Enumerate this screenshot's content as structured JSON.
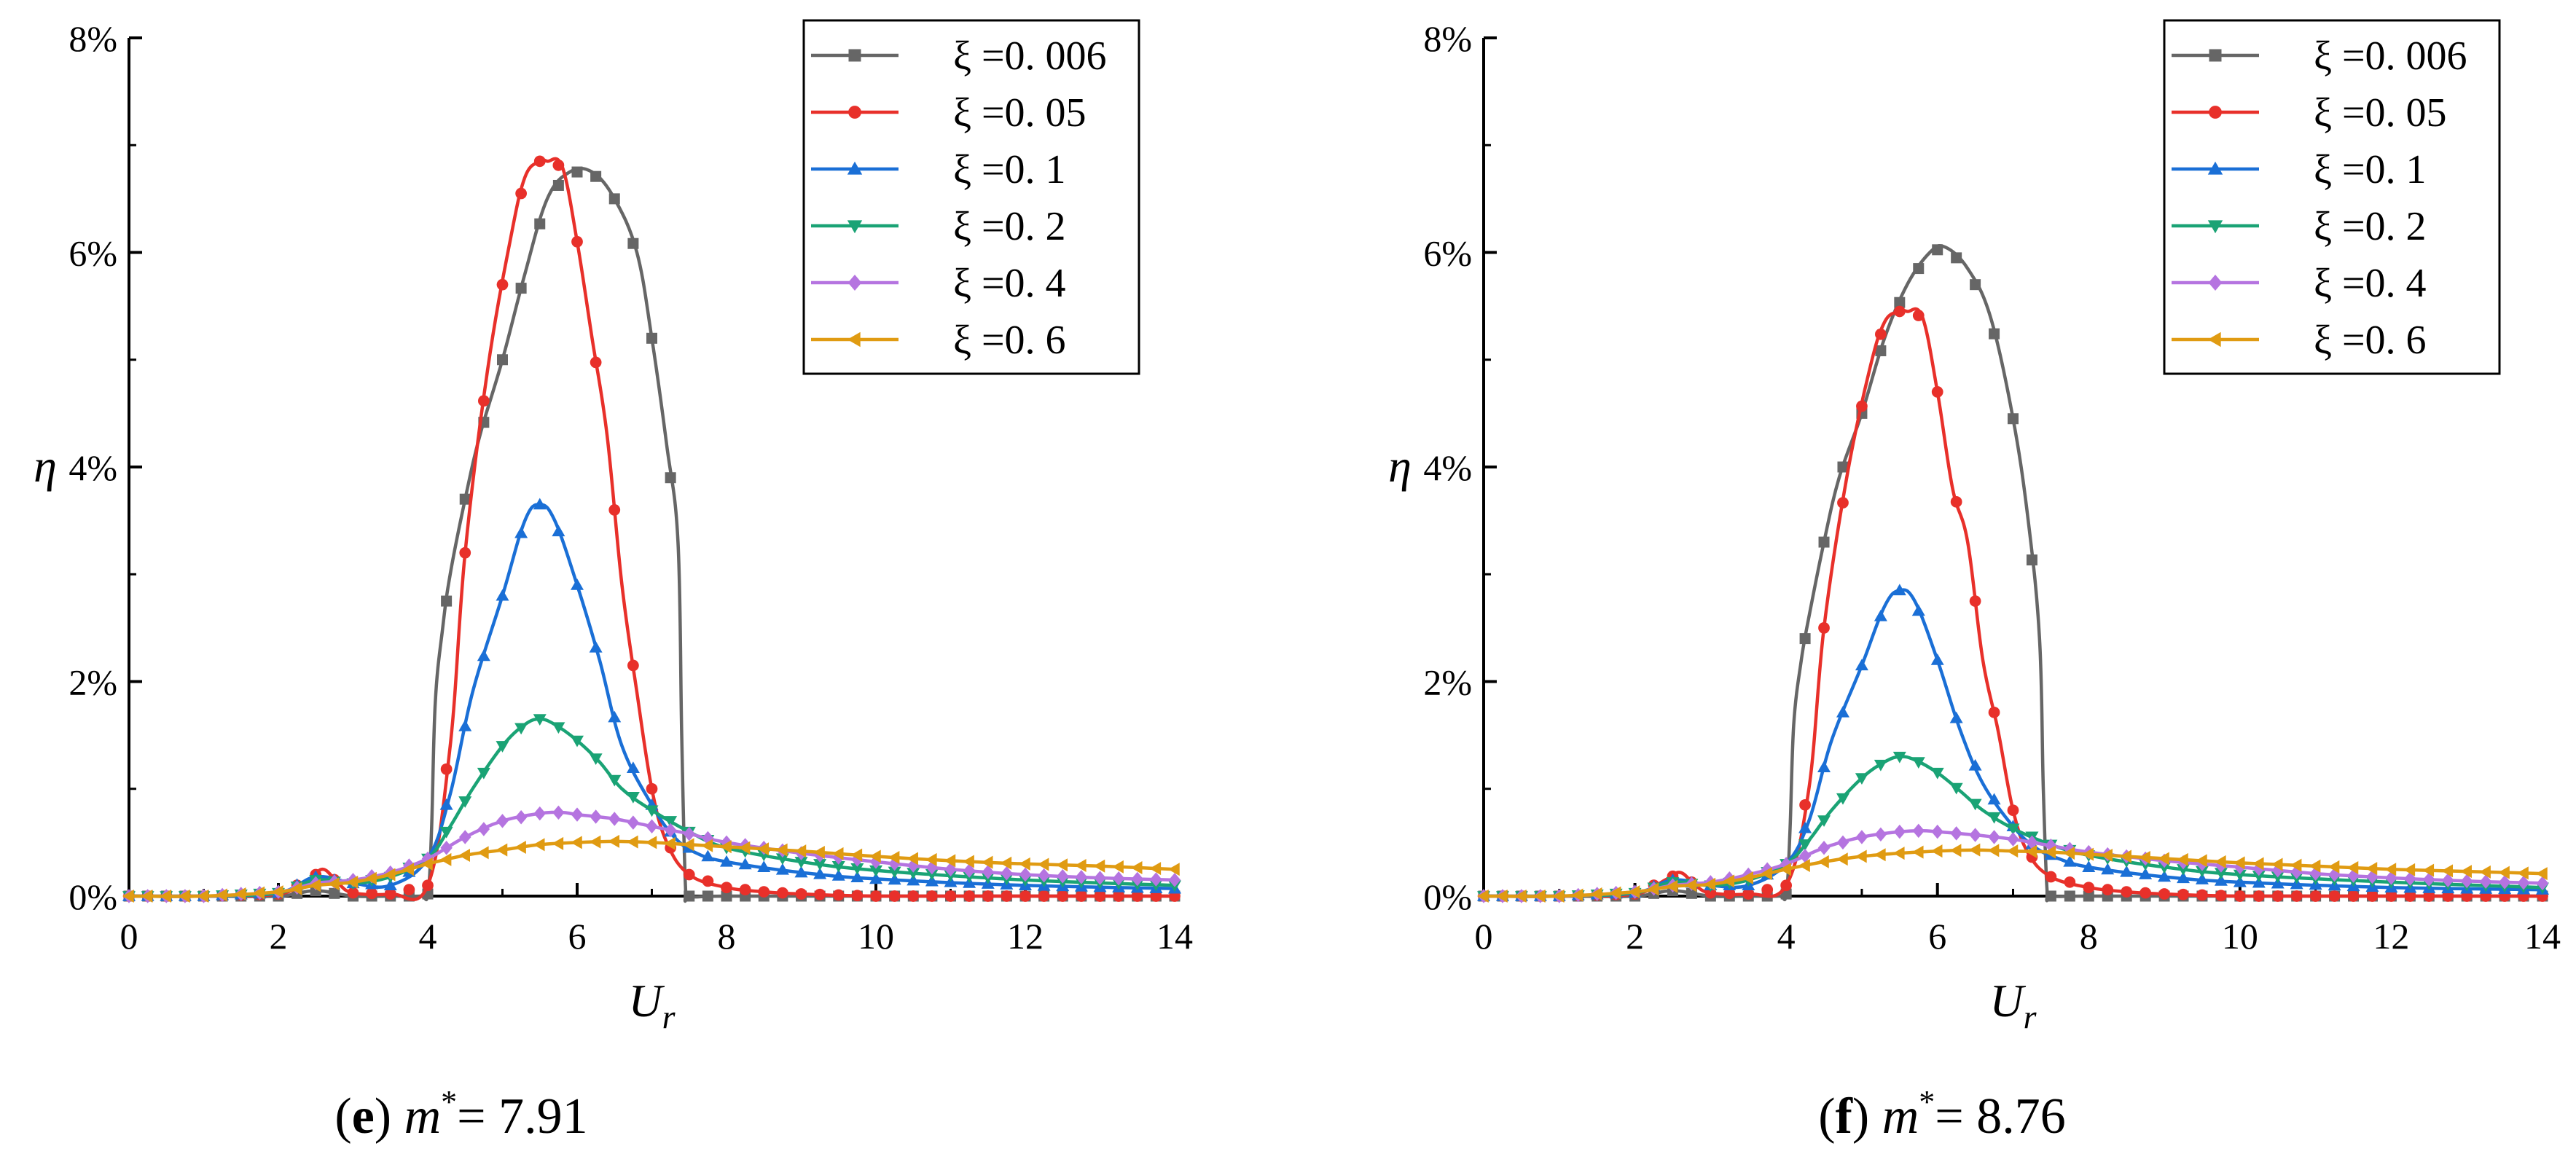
{
  "chart_data": [
    {
      "type": "line",
      "panel_letter": "e",
      "caption_variable": "m",
      "caption_superscript": "*",
      "caption_value": "= 7.91",
      "title": "(e) m* = 7.91",
      "xlabel": "U",
      "xlabel_sub": "r",
      "ylabel": "η",
      "xlim": [
        0,
        14
      ],
      "ylim": [
        0,
        8
      ],
      "xticks": [
        "0",
        "2",
        "4",
        "6",
        "8",
        "10",
        "12",
        "14"
      ],
      "yticks": [
        "0%",
        "2%",
        "4%",
        "6%",
        "8%"
      ],
      "legend_position": "top-right",
      "series": [
        {
          "name": "ξ =0. 006",
          "color": "#666666",
          "marker": "square",
          "x": [
            0,
            1,
            2,
            2.5,
            3,
            3.5,
            3.9,
            4.0,
            4.05,
            4.1,
            4.2,
            4.3,
            4.5,
            4.7,
            5.0,
            5.3,
            5.6,
            5.9,
            6.2,
            6.5,
            6.8,
            7.0,
            7.2,
            7.35,
            7.4,
            7.45,
            7.5,
            8,
            10,
            12,
            14
          ],
          "y": [
            0,
            0,
            0,
            0.05,
            0,
            0,
            0,
            0.02,
            0.6,
            1.8,
            2.5,
            3.0,
            3.7,
            4.3,
            5.0,
            5.8,
            6.5,
            6.75,
            6.75,
            6.5,
            6.0,
            5.2,
            4.2,
            3.3,
            1.5,
            0.1,
            0,
            0,
            0,
            0,
            0
          ]
        },
        {
          "name": "ξ =0. 05",
          "color": "#e8302a",
          "marker": "circle",
          "x": [
            0,
            1,
            2,
            2.4,
            2.6,
            2.8,
            3,
            3.5,
            4,
            4.3,
            4.5,
            4.8,
            5.1,
            5.3,
            5.5,
            5.6,
            5.8,
            6.0,
            6.2,
            6.4,
            6.6,
            6.8,
            7.0,
            7.2,
            7.5,
            8,
            8.5,
            9,
            10,
            12,
            14
          ],
          "y": [
            0,
            0,
            0.02,
            0.15,
            0.25,
            0.12,
            0.03,
            0.02,
            0.1,
            1.4,
            3.2,
            4.9,
            6.1,
            6.7,
            6.85,
            6.85,
            6.8,
            6.1,
            5.2,
            4.3,
            2.9,
            1.9,
            1.0,
            0.5,
            0.2,
            0.08,
            0.04,
            0.02,
            0,
            0,
            0
          ]
        },
        {
          "name": "ξ =0. 1",
          "color": "#1a6fd6",
          "marker": "triangle-up",
          "x": [
            0,
            1,
            2,
            2.5,
            3,
            3.5,
            4,
            4.3,
            4.6,
            5.0,
            5.3,
            5.5,
            5.7,
            6.0,
            6.3,
            6.6,
            7.0,
            7.3,
            7.6,
            8,
            9,
            10,
            12,
            14
          ],
          "y": [
            0,
            0,
            0.03,
            0.18,
            0.12,
            0.1,
            0.35,
            0.95,
            1.9,
            2.8,
            3.5,
            3.65,
            3.5,
            2.9,
            2.2,
            1.4,
            0.85,
            0.55,
            0.4,
            0.32,
            0.22,
            0.16,
            0.1,
            0.07
          ]
        },
        {
          "name": "ξ =0. 2",
          "color": "#1aa375",
          "marker": "triangle-down",
          "x": [
            0,
            1,
            2,
            2.5,
            3,
            3.5,
            4,
            4.3,
            4.6,
            5.0,
            5.3,
            5.5,
            5.7,
            6.0,
            6.3,
            6.6,
            7.0,
            7.5,
            8,
            9,
            10,
            12,
            14
          ],
          "y": [
            0,
            0,
            0.03,
            0.15,
            0.12,
            0.18,
            0.35,
            0.65,
            1.0,
            1.4,
            1.6,
            1.65,
            1.6,
            1.45,
            1.25,
            1.0,
            0.8,
            0.6,
            0.45,
            0.32,
            0.24,
            0.15,
            0.1
          ]
        },
        {
          "name": "ξ =0. 4",
          "color": "#b574e0",
          "marker": "diamond",
          "x": [
            0,
            1,
            2,
            2.5,
            3,
            3.5,
            4,
            4.5,
            5,
            5.5,
            5.8,
            6,
            6.5,
            7,
            7.5,
            8,
            9,
            10,
            11,
            12,
            13,
            14
          ],
          "y": [
            0,
            0,
            0.04,
            0.12,
            0.15,
            0.22,
            0.35,
            0.55,
            0.7,
            0.77,
            0.78,
            0.76,
            0.72,
            0.65,
            0.58,
            0.5,
            0.4,
            0.32,
            0.25,
            0.2,
            0.17,
            0.15
          ]
        },
        {
          "name": "ξ =0. 6",
          "color": "#e09b12",
          "marker": "triangle-left",
          "x": [
            0,
            1,
            2,
            2.5,
            3,
            3.5,
            4,
            4.5,
            5,
            5.5,
            6,
            6.5,
            7,
            7.5,
            8,
            9,
            10,
            11,
            12,
            13,
            14
          ],
          "y": [
            0,
            0,
            0.04,
            0.1,
            0.13,
            0.2,
            0.3,
            0.38,
            0.43,
            0.48,
            0.5,
            0.51,
            0.5,
            0.48,
            0.46,
            0.42,
            0.37,
            0.33,
            0.3,
            0.28,
            0.25
          ]
        }
      ]
    },
    {
      "type": "line",
      "panel_letter": "f",
      "caption_variable": "m",
      "caption_superscript": "*",
      "caption_value": "= 8.76",
      "title": "(f) m* = 8.76",
      "xlabel": "U",
      "xlabel_sub": "r",
      "ylabel": "η",
      "xlim": [
        0,
        14
      ],
      "ylim": [
        0,
        8
      ],
      "xticks": [
        "0",
        "2",
        "4",
        "6",
        "8",
        "10",
        "12",
        "14"
      ],
      "yticks": [
        "0%",
        "2%",
        "4%",
        "6%",
        "8%"
      ],
      "legend_position": "top-right",
      "series": [
        {
          "name": "ξ =0. 006",
          "color": "#666666",
          "marker": "square",
          "x": [
            0,
            1,
            2,
            2.5,
            3,
            3.5,
            3.9,
            4.0,
            4.05,
            4.1,
            4.2,
            4.3,
            4.5,
            4.7,
            5.0,
            5.3,
            5.6,
            5.9,
            6.1,
            6.4,
            6.7,
            7.0,
            7.2,
            7.35,
            7.4,
            7.45,
            7.5,
            8,
            10,
            12,
            14
          ],
          "y": [
            0,
            0,
            0,
            0.05,
            0,
            0,
            0,
            0.02,
            0.6,
            1.6,
            2.2,
            2.6,
            3.3,
            3.9,
            4.5,
            5.2,
            5.7,
            6.0,
            6.05,
            5.85,
            5.4,
            4.45,
            3.5,
            2.4,
            1.0,
            0.05,
            0,
            0,
            0,
            0,
            0
          ]
        },
        {
          "name": "ξ =0. 05",
          "color": "#e8302a",
          "marker": "circle",
          "x": [
            0,
            1,
            2,
            2.4,
            2.6,
            2.8,
            3,
            3.5,
            4,
            4.3,
            4.5,
            4.8,
            5.1,
            5.3,
            5.5,
            5.6,
            5.8,
            6.0,
            6.2,
            6.4,
            6.6,
            6.8,
            7.0,
            7.2,
            7.5,
            8,
            8.5,
            9,
            10,
            12,
            14
          ],
          "y": [
            0,
            0,
            0.02,
            0.15,
            0.22,
            0.1,
            0.03,
            0.02,
            0.1,
            1.0,
            2.5,
            3.9,
            4.9,
            5.35,
            5.45,
            5.45,
            5.4,
            4.7,
            3.8,
            3.3,
            2.2,
            1.55,
            0.8,
            0.4,
            0.18,
            0.08,
            0.04,
            0.02,
            0,
            0,
            0
          ]
        },
        {
          "name": "ξ =0. 1",
          "color": "#1a6fd6",
          "marker": "triangle-up",
          "x": [
            0,
            1,
            2,
            2.5,
            3,
            3.5,
            4,
            4.3,
            4.6,
            5.0,
            5.3,
            5.5,
            5.7,
            6.0,
            6.3,
            6.6,
            7.0,
            7.3,
            7.6,
            8,
            9,
            10,
            12,
            14
          ],
          "y": [
            0,
            0,
            0.03,
            0.15,
            0.1,
            0.1,
            0.3,
            0.7,
            1.45,
            2.15,
            2.7,
            2.85,
            2.75,
            2.2,
            1.55,
            1.05,
            0.65,
            0.45,
            0.35,
            0.27,
            0.18,
            0.13,
            0.08,
            0.06
          ]
        },
        {
          "name": "ξ =0. 2",
          "color": "#1aa375",
          "marker": "triangle-down",
          "x": [
            0,
            1,
            2,
            2.5,
            3,
            3.5,
            4,
            4.3,
            4.6,
            5.0,
            5.3,
            5.5,
            5.7,
            6.0,
            6.3,
            6.6,
            7.0,
            7.5,
            8,
            9,
            10,
            12,
            14
          ],
          "y": [
            0,
            0,
            0.03,
            0.13,
            0.1,
            0.15,
            0.3,
            0.52,
            0.8,
            1.1,
            1.25,
            1.3,
            1.27,
            1.15,
            0.98,
            0.8,
            0.63,
            0.48,
            0.38,
            0.27,
            0.2,
            0.13,
            0.08
          ]
        },
        {
          "name": "ξ =0. 4",
          "color": "#b574e0",
          "marker": "diamond",
          "x": [
            0,
            1,
            2,
            2.5,
            3,
            3.5,
            4,
            4.5,
            5,
            5.5,
            5.8,
            6,
            6.5,
            7,
            7.5,
            8,
            9,
            10,
            11,
            12,
            13,
            14
          ],
          "y": [
            0,
            0,
            0.04,
            0.1,
            0.13,
            0.2,
            0.3,
            0.45,
            0.55,
            0.6,
            0.61,
            0.6,
            0.57,
            0.53,
            0.47,
            0.41,
            0.33,
            0.27,
            0.21,
            0.17,
            0.14,
            0.12
          ]
        },
        {
          "name": "ξ =0. 6",
          "color": "#e09b12",
          "marker": "triangle-left",
          "x": [
            0,
            1,
            2,
            2.5,
            3,
            3.5,
            4,
            4.5,
            5,
            5.5,
            6,
            6.5,
            7,
            7.5,
            8,
            9,
            10,
            11,
            12,
            13,
            14
          ],
          "y": [
            0,
            0,
            0.04,
            0.09,
            0.11,
            0.17,
            0.25,
            0.32,
            0.37,
            0.4,
            0.42,
            0.43,
            0.42,
            0.41,
            0.39,
            0.35,
            0.31,
            0.28,
            0.25,
            0.23,
            0.21
          ]
        }
      ]
    }
  ]
}
